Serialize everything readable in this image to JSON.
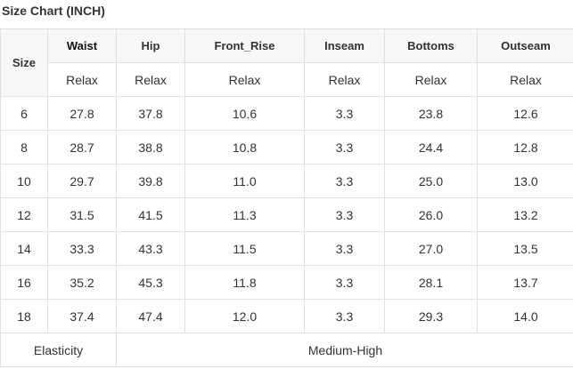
{
  "title": "Size Chart (INCH)",
  "header": {
    "size": "Size",
    "columns": [
      "Waist",
      "Hip",
      "Front_Rise",
      "Inseam",
      "Bottoms",
      "Outseam"
    ],
    "fit": [
      "Relax",
      "Relax",
      "Relax",
      "Relax",
      "Relax",
      "Relax"
    ]
  },
  "rows": [
    [
      "6",
      "27.8",
      "37.8",
      "10.6",
      "3.3",
      "23.8",
      "12.6"
    ],
    [
      "8",
      "28.7",
      "38.8",
      "10.8",
      "3.3",
      "24.4",
      "12.8"
    ],
    [
      "10",
      "29.7",
      "39.8",
      "11.0",
      "3.3",
      "25.0",
      "13.0"
    ],
    [
      "12",
      "31.5",
      "41.5",
      "11.3",
      "3.3",
      "26.0",
      "13.2"
    ],
    [
      "14",
      "33.3",
      "43.3",
      "11.5",
      "3.3",
      "27.0",
      "13.5"
    ],
    [
      "16",
      "35.2",
      "45.3",
      "11.8",
      "3.3",
      "28.1",
      "13.7"
    ],
    [
      "18",
      "37.4",
      "47.4",
      "12.0",
      "3.3",
      "29.3",
      "14.0"
    ]
  ],
  "elasticity": {
    "label": "Elasticity",
    "value": "Medium-High"
  }
}
